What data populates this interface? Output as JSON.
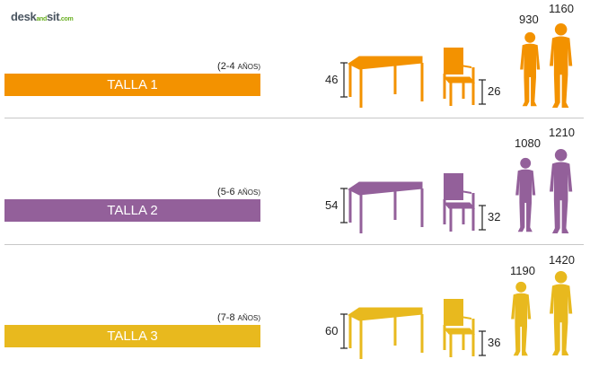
{
  "logo": {
    "desk": "desk",
    "and": "and",
    "sit": "sit",
    "com": ".com"
  },
  "sizes": [
    {
      "label": "TALLA 1",
      "age_range": "(2-4",
      "age_unit": "AÑOS)",
      "table_height": "46",
      "chair_height": "26",
      "person_small": "930",
      "person_large": "1160",
      "color": "#f39200"
    },
    {
      "label": "TALLA 2",
      "age_range": "(5-6",
      "age_unit": "AÑOS)",
      "table_height": "54",
      "chair_height": "32",
      "person_small": "1080",
      "person_large": "1210",
      "color": "#93609a"
    },
    {
      "label": "TALLA 3",
      "age_range": "(7-8",
      "age_unit": "AÑOS)",
      "table_height": "60",
      "chair_height": "36",
      "person_small": "1190",
      "person_large": "1420",
      "color": "#e8b91e"
    }
  ]
}
